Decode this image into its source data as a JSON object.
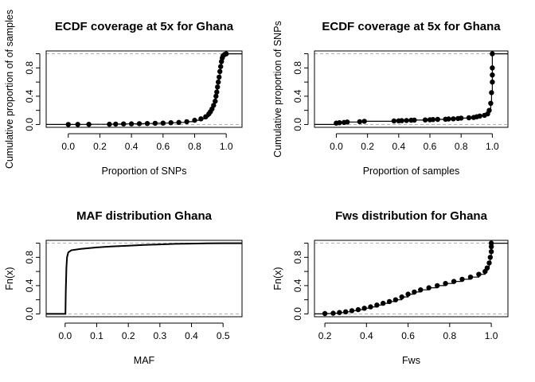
{
  "figure": {
    "background": "#ffffff",
    "point_color": "#000000",
    "guide_line_color": "#b3b3b3"
  },
  "chart_data": [
    {
      "id": "p1",
      "type": "scatter",
      "title": "ECDF coverage at 5x for Ghana",
      "xlabel": "Proportion of SNPs",
      "ylabel": "Cumulative proportion of of samples",
      "xlim": [
        -0.14,
        1.1
      ],
      "ylim": [
        -0.04,
        1.04
      ],
      "xticks": [
        0.0,
        0.2,
        0.4,
        0.6,
        0.8,
        1.0
      ],
      "xtick_labels": [
        "0.0",
        "0.2",
        "0.4",
        "0.6",
        "0.8",
        "1.0"
      ],
      "yticks": [
        0.0,
        0.4,
        0.8
      ],
      "ytick_labels": [
        "0.0",
        "0.4",
        "0.8"
      ],
      "yminor": [
        0.2,
        0.6,
        1.0
      ],
      "hlines": [
        0,
        1
      ],
      "grid": false,
      "step": true,
      "points": [
        [
          0.0,
          0.001
        ],
        [
          0.06,
          0.002
        ],
        [
          0.13,
          0.003
        ],
        [
          0.26,
          0.004
        ],
        [
          0.3,
          0.006
        ],
        [
          0.35,
          0.008
        ],
        [
          0.4,
          0.01
        ],
        [
          0.45,
          0.012
        ],
        [
          0.5,
          0.014
        ],
        [
          0.55,
          0.017
        ],
        [
          0.6,
          0.02
        ],
        [
          0.65,
          0.025
        ],
        [
          0.7,
          0.03
        ],
        [
          0.75,
          0.04
        ],
        [
          0.8,
          0.06
        ],
        [
          0.84,
          0.08
        ],
        [
          0.87,
          0.11
        ],
        [
          0.89,
          0.15
        ],
        [
          0.9,
          0.18
        ],
        [
          0.91,
          0.22
        ],
        [
          0.92,
          0.27
        ],
        [
          0.93,
          0.33
        ],
        [
          0.935,
          0.4
        ],
        [
          0.94,
          0.46
        ],
        [
          0.945,
          0.53
        ],
        [
          0.95,
          0.6
        ],
        [
          0.955,
          0.67
        ],
        [
          0.96,
          0.75
        ],
        [
          0.965,
          0.82
        ],
        [
          0.97,
          0.89
        ],
        [
          0.975,
          0.94
        ],
        [
          0.98,
          0.97
        ],
        [
          0.99,
          0.99
        ],
        [
          1.0,
          1.0
        ]
      ]
    },
    {
      "id": "p2",
      "type": "scatter",
      "title": "ECDF coverage at 5x for Ghana",
      "xlabel": "Proportion of samples",
      "ylabel": "Cumulative proportion of SNPs",
      "xlim": [
        -0.14,
        1.1
      ],
      "ylim": [
        -0.04,
        1.04
      ],
      "xticks": [
        0.0,
        0.2,
        0.4,
        0.6,
        0.8,
        1.0
      ],
      "xtick_labels": [
        "0.0",
        "0.2",
        "0.4",
        "0.6",
        "0.8",
        "1.0"
      ],
      "yticks": [
        0.0,
        0.4,
        0.8
      ],
      "ytick_labels": [
        "0.0",
        "0.4",
        "0.8"
      ],
      "yminor": [
        0.2,
        0.6,
        1.0
      ],
      "hlines": [
        0,
        1
      ],
      "grid": false,
      "step": true,
      "points": [
        [
          0.0,
          0.02
        ],
        [
          0.02,
          0.025
        ],
        [
          0.05,
          0.03
        ],
        [
          0.07,
          0.035
        ],
        [
          0.15,
          0.04
        ],
        [
          0.18,
          0.045
        ],
        [
          0.37,
          0.05
        ],
        [
          0.4,
          0.052
        ],
        [
          0.42,
          0.055
        ],
        [
          0.45,
          0.057
        ],
        [
          0.48,
          0.06
        ],
        [
          0.5,
          0.062
        ],
        [
          0.57,
          0.065
        ],
        [
          0.6,
          0.067
        ],
        [
          0.62,
          0.07
        ],
        [
          0.65,
          0.072
        ],
        [
          0.7,
          0.075
        ],
        [
          0.72,
          0.078
        ],
        [
          0.75,
          0.08
        ],
        [
          0.78,
          0.085
        ],
        [
          0.8,
          0.09
        ],
        [
          0.85,
          0.095
        ],
        [
          0.88,
          0.1
        ],
        [
          0.9,
          0.11
        ],
        [
          0.92,
          0.12
        ],
        [
          0.95,
          0.13
        ],
        [
          0.97,
          0.15
        ],
        [
          0.98,
          0.2
        ],
        [
          0.99,
          0.3
        ],
        [
          0.995,
          0.45
        ],
        [
          1.0,
          0.6
        ],
        [
          1.0,
          0.7
        ],
        [
          1.0,
          0.8
        ],
        [
          1.0,
          1.0
        ]
      ]
    },
    {
      "id": "p3",
      "type": "line",
      "title": "MAF distribution Ghana",
      "xlabel": "MAF",
      "ylabel": "Fn(x)",
      "xlim": [
        -0.06,
        0.56
      ],
      "ylim": [
        -0.04,
        1.04
      ],
      "xticks": [
        0.0,
        0.1,
        0.2,
        0.3,
        0.4,
        0.5
      ],
      "xtick_labels": [
        "0.0",
        "0.1",
        "0.2",
        "0.3",
        "0.4",
        "0.5"
      ],
      "yticks": [
        0.0,
        0.4,
        0.8
      ],
      "ytick_labels": [
        "0.0",
        "0.4",
        "0.8"
      ],
      "yminor": [
        0.2,
        0.6,
        1.0
      ],
      "hlines": [
        0,
        1
      ],
      "grid": false,
      "step": false,
      "points": [
        [
          -0.06,
          0.0
        ],
        [
          0.001,
          0.0
        ],
        [
          0.002,
          0.3
        ],
        [
          0.004,
          0.65
        ],
        [
          0.006,
          0.8
        ],
        [
          0.01,
          0.87
        ],
        [
          0.02,
          0.9
        ],
        [
          0.05,
          0.92
        ],
        [
          0.1,
          0.94
        ],
        [
          0.15,
          0.955
        ],
        [
          0.2,
          0.965
        ],
        [
          0.25,
          0.975
        ],
        [
          0.3,
          0.983
        ],
        [
          0.35,
          0.99
        ],
        [
          0.4,
          0.994
        ],
        [
          0.45,
          0.997
        ],
        [
          0.5,
          1.0
        ],
        [
          0.56,
          1.0
        ]
      ]
    },
    {
      "id": "p4",
      "type": "scatter",
      "title": "Fws distribution for Ghana",
      "xlabel": "Fws",
      "ylabel": "Fn(x)",
      "xlim": [
        0.15,
        1.08
      ],
      "ylim": [
        -0.04,
        1.04
      ],
      "xticks": [
        0.2,
        0.4,
        0.6,
        0.8,
        1.0
      ],
      "xtick_labels": [
        "0.2",
        "0.4",
        "0.6",
        "0.8",
        "1.0"
      ],
      "yticks": [
        0.0,
        0.4,
        0.8
      ],
      "ytick_labels": [
        "0.0",
        "0.4",
        "0.8"
      ],
      "yminor": [
        0.2,
        0.6,
        1.0
      ],
      "hlines": [
        0,
        1
      ],
      "grid": false,
      "step": true,
      "points": [
        [
          0.2,
          0.005
        ],
        [
          0.24,
          0.01
        ],
        [
          0.27,
          0.02
        ],
        [
          0.3,
          0.03
        ],
        [
          0.33,
          0.045
        ],
        [
          0.36,
          0.06
        ],
        [
          0.39,
          0.08
        ],
        [
          0.42,
          0.1
        ],
        [
          0.45,
          0.125
        ],
        [
          0.48,
          0.15
        ],
        [
          0.51,
          0.175
        ],
        [
          0.54,
          0.2
        ],
        [
          0.57,
          0.24
        ],
        [
          0.6,
          0.28
        ],
        [
          0.63,
          0.31
        ],
        [
          0.66,
          0.34
        ],
        [
          0.7,
          0.37
        ],
        [
          0.74,
          0.4
        ],
        [
          0.78,
          0.43
        ],
        [
          0.82,
          0.46
        ],
        [
          0.86,
          0.49
        ],
        [
          0.9,
          0.52
        ],
        [
          0.94,
          0.56
        ],
        [
          0.97,
          0.6
        ],
        [
          0.98,
          0.65
        ],
        [
          0.99,
          0.72
        ],
        [
          0.995,
          0.8
        ],
        [
          1.0,
          0.88
        ],
        [
          1.0,
          0.95
        ],
        [
          1.0,
          1.0
        ]
      ]
    }
  ]
}
